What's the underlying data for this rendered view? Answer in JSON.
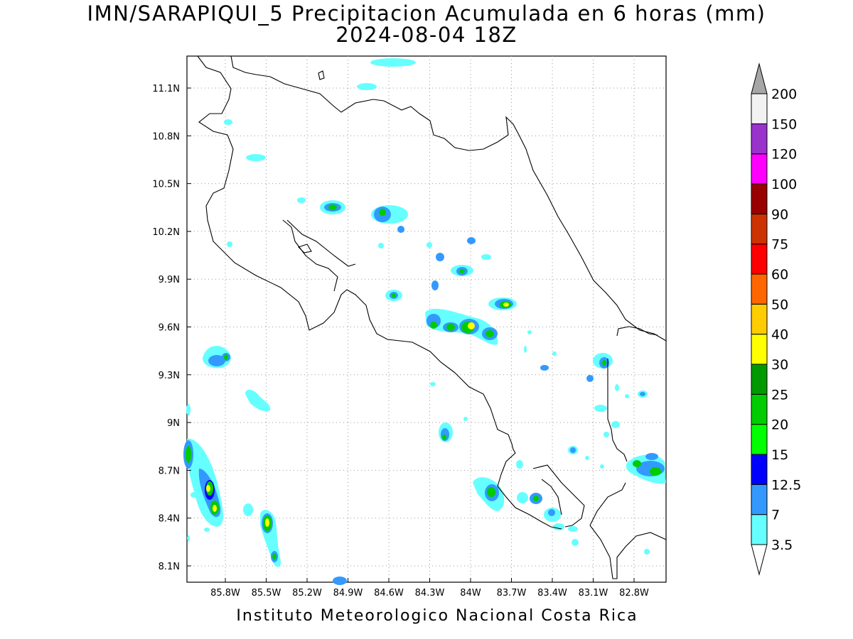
{
  "title_line1": "IMN/SARAPIQUI_5 Precipitacion Acumulada en 6 horas (mm)",
  "title_line2": "2024-08-04 18Z",
  "footer": "Instituto Meteorologico Nacional Costa Rica",
  "map": {
    "lon_ticks": [
      "85.8W",
      "85.5W",
      "85.2W",
      "84.9W",
      "84.6W",
      "84.3W",
      "84W",
      "83.7W",
      "83.4W",
      "83.1W",
      "82.8W"
    ],
    "lat_ticks": [
      "11.1N",
      "10.8N",
      "10.5N",
      "10.2N",
      "9.9N",
      "9.6N",
      "9.3N",
      "9N",
      "8.7N",
      "8.4N",
      "8.1N"
    ],
    "gridlines": true,
    "gridline_style": "dotted"
  },
  "colorbar": {
    "labels": [
      "3.5",
      "7",
      "12.5",
      "15",
      "20",
      "25",
      "30",
      "40",
      "50",
      "60",
      "75",
      "90",
      "100",
      "120",
      "150",
      "200"
    ],
    "colors": [
      "#66ffff",
      "#3399ff",
      "#0000ff",
      "#00ff00",
      "#00cc00",
      "#009900",
      "#ffff00",
      "#ffcc00",
      "#ff6600",
      "#ff0000",
      "#cc3300",
      "#990000",
      "#ff00ff",
      "#9933cc",
      "#f2f2f2",
      "#a6a6a6"
    ]
  }
}
